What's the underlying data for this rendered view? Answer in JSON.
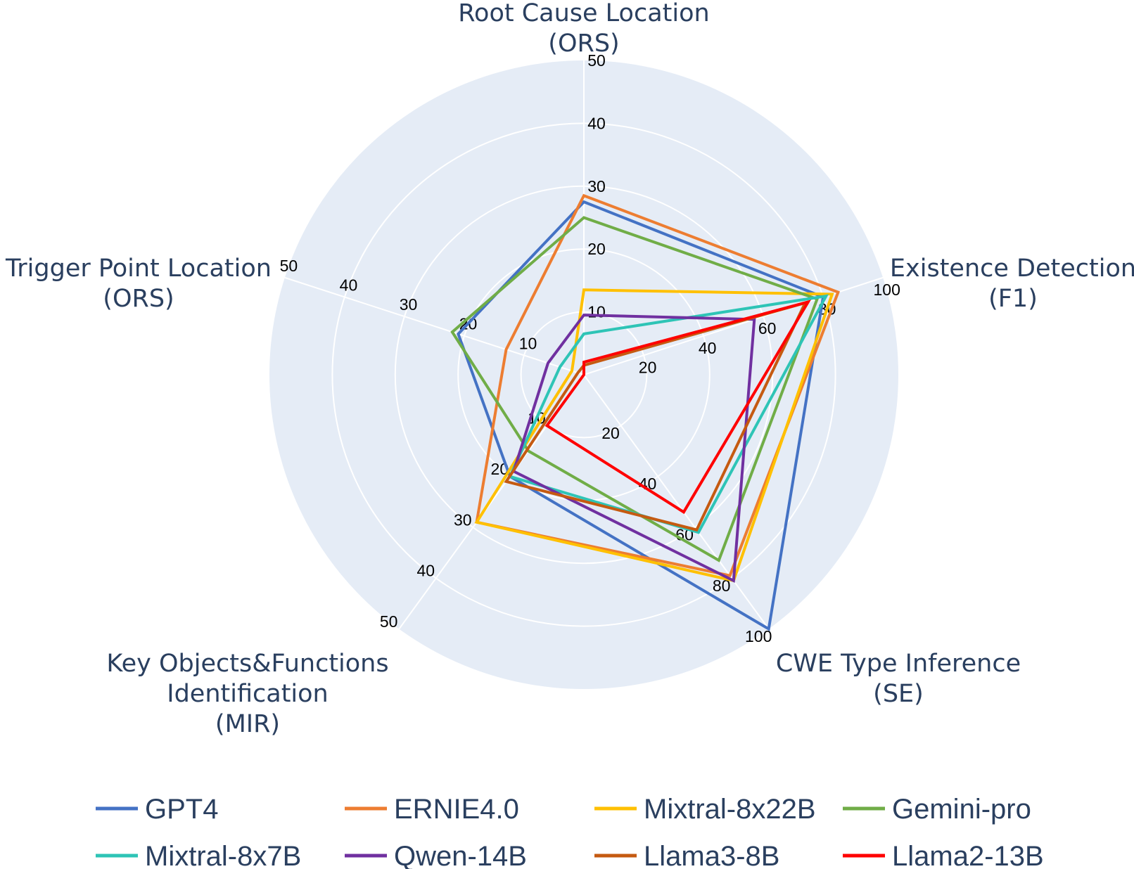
{
  "chart_data": {
    "type": "radar",
    "axes": [
      {
        "label_lines": [
          "Root Cause Location",
          "(ORS)"
        ],
        "range": [
          0,
          50
        ],
        "ticks": [
          "10",
          "20",
          "30",
          "40",
          "50"
        ]
      },
      {
        "label_lines": [
          "Existence Detection",
          "(F1)"
        ],
        "range": [
          0,
          100
        ],
        "ticks": [
          "20",
          "40",
          "60",
          "80",
          "100"
        ]
      },
      {
        "label_lines": [
          "CWE Type Inference",
          "(SE)"
        ],
        "range": [
          0,
          100
        ],
        "ticks": [
          "20",
          "40",
          "60",
          "80",
          "100"
        ]
      },
      {
        "label_lines": [
          "Key Objects&Functions",
          "Identification",
          "(MIR)"
        ],
        "range": [
          0,
          50
        ],
        "ticks": [
          "10",
          "20",
          "30",
          "40",
          "50"
        ]
      },
      {
        "label_lines": [
          "Trigger Point Location",
          "(ORS)"
        ],
        "range": [
          0,
          50
        ],
        "ticks": [
          "10",
          "20",
          "30",
          "40",
          "50"
        ]
      }
    ],
    "series": [
      {
        "name": "GPT4",
        "color": "#4472c4",
        "values": [
          27.5,
          80,
          100,
          20,
          21
        ]
      },
      {
        "name": "ERNIE4.0",
        "color": "#ed7d31",
        "values": [
          28.5,
          85,
          79,
          29,
          13
        ]
      },
      {
        "name": "Mixtral-8x22B",
        "color": "#ffc000",
        "values": [
          13.5,
          83,
          81,
          29,
          2
        ]
      },
      {
        "name": "Gemini-pro",
        "color": "#70ad47",
        "values": [
          25,
          78,
          73,
          15,
          22
        ]
      },
      {
        "name": "Mixtral-8x7B",
        "color": "#2ec4b6",
        "values": [
          6.5,
          81,
          62,
          20,
          4
        ]
      },
      {
        "name": "Qwen-14B",
        "color": "#7030a0",
        "values": [
          9.5,
          57,
          81,
          19,
          6
        ]
      },
      {
        "name": "Llama3-8B",
        "color": "#c55a11",
        "values": [
          1.5,
          74,
          61,
          21,
          1
        ]
      },
      {
        "name": "Llama2-13B",
        "color": "#ff0000",
        "values": [
          2,
          75,
          54,
          10,
          0
        ]
      }
    ],
    "grid": true,
    "legend_position": "bottom"
  }
}
